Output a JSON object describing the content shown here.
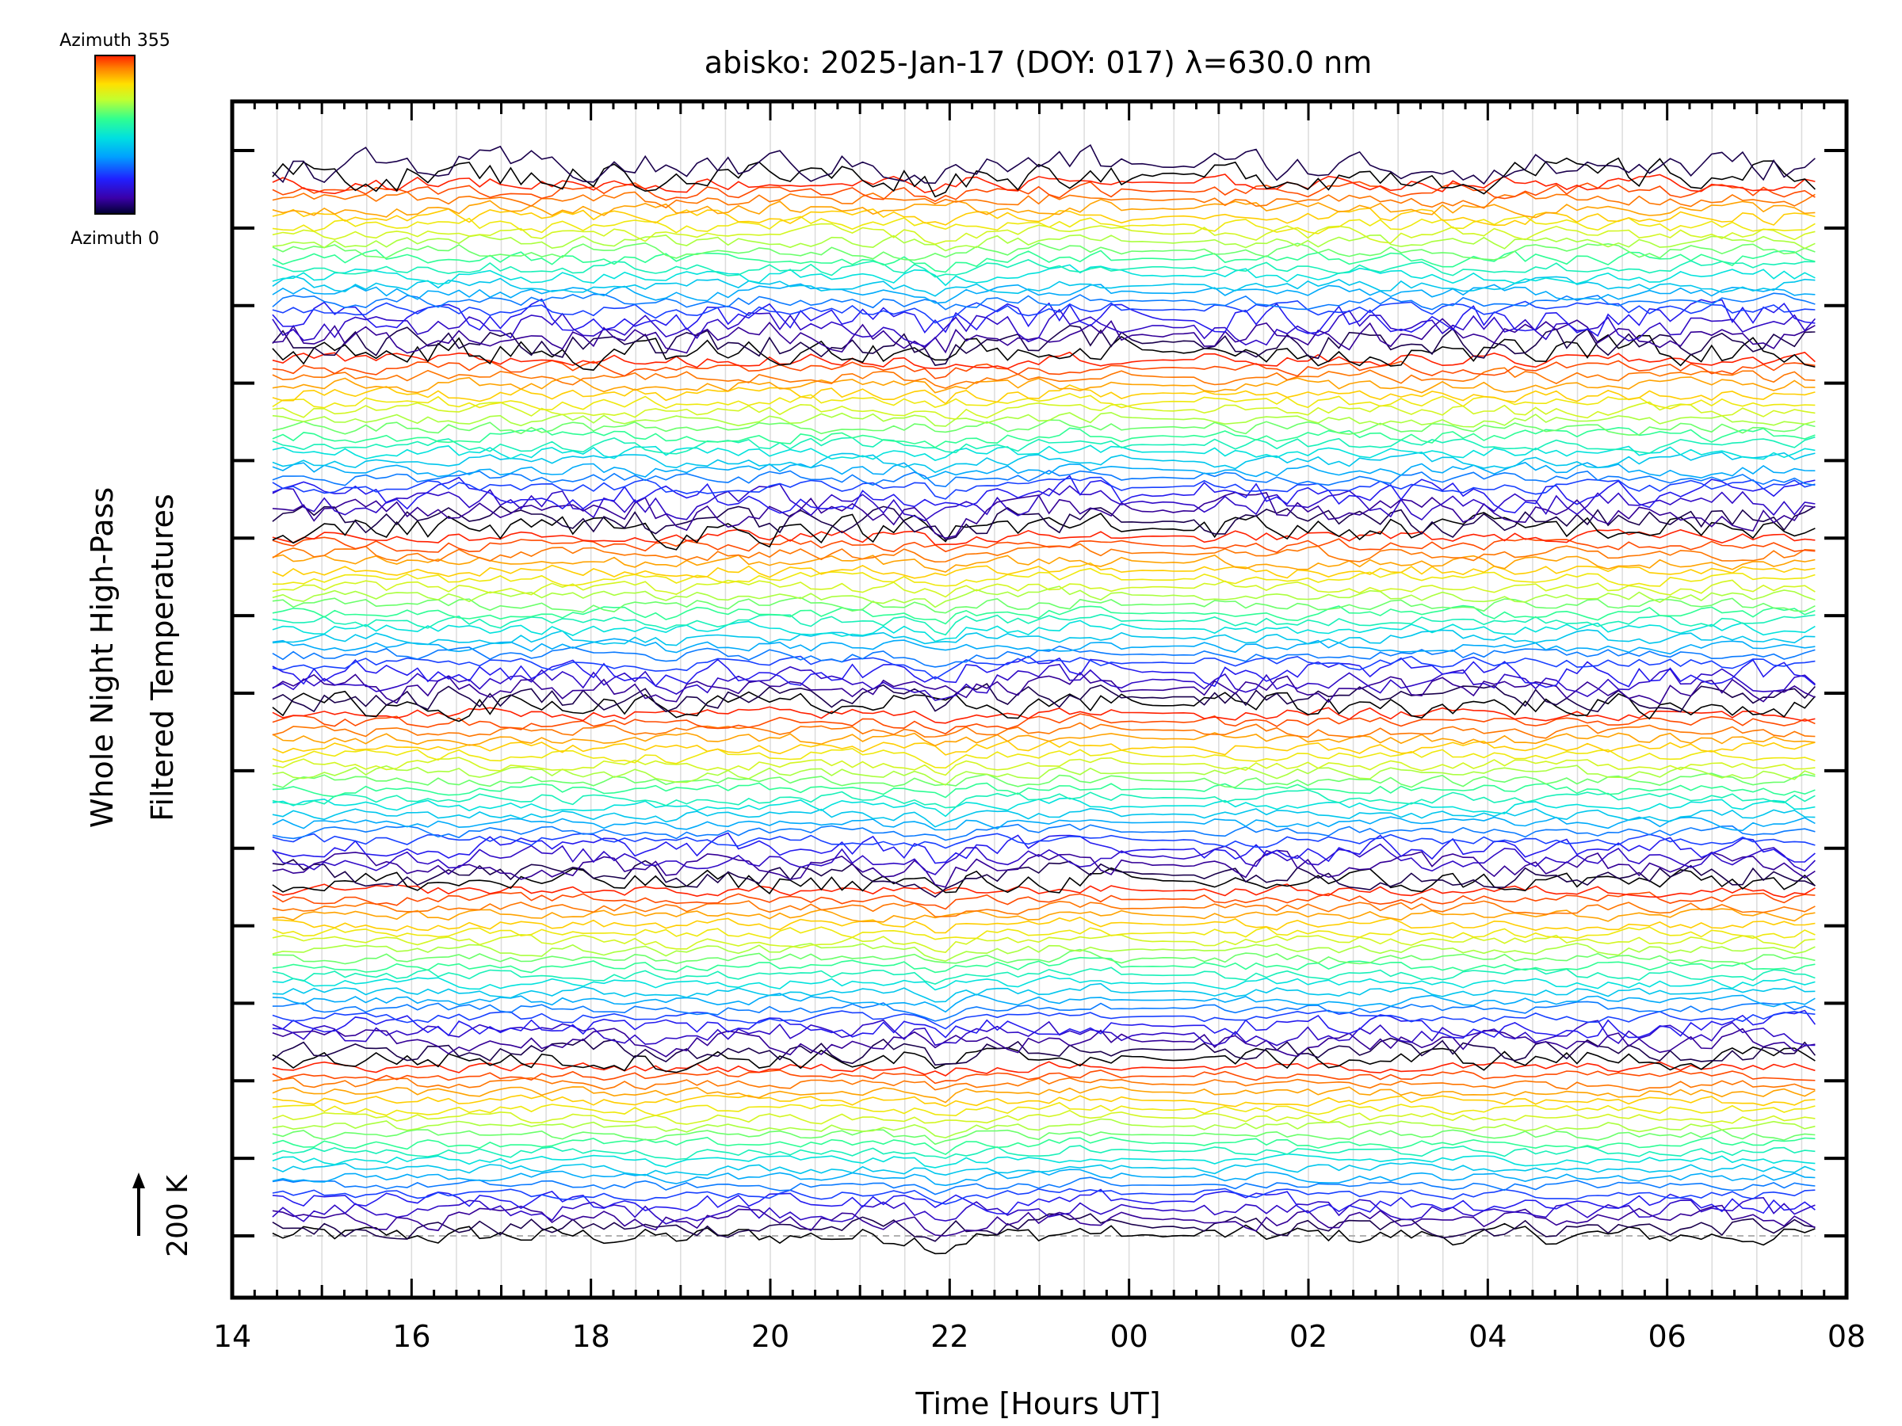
{
  "chart_data": {
    "type": "line",
    "title": "abisko: 2025-Jan-17 (DOY: 017) λ=630.0 nm",
    "xlabel": "Time [Hours UT]",
    "ylabel_line1": "Whole Night High-Pass",
    "ylabel_line2": "Filtered Temperatures",
    "scale_label": "200 K",
    "x_tick_labels": [
      "14",
      "16",
      "18",
      "20",
      "22",
      "00",
      "02",
      "04",
      "06",
      "08"
    ],
    "x_range_hours": [
      14,
      32
    ],
    "data_x_range_hours": [
      14.45,
      31.65
    ],
    "n_samples": 150,
    "y_major_ticks": 15,
    "n_stacked_series": 128,
    "trace_spacing_k": 30,
    "colorbar": {
      "top_label": "Azimuth 355",
      "bottom_label": "Azimuth 0",
      "colors": [
        "#000000",
        "#3a00a8",
        "#2020ff",
        "#00a0ff",
        "#00e0e0",
        "#30ff90",
        "#c0ff30",
        "#ffe000",
        "#ff8000",
        "#ff2000"
      ]
    },
    "grid": true,
    "legend": "colorbar top-left"
  }
}
